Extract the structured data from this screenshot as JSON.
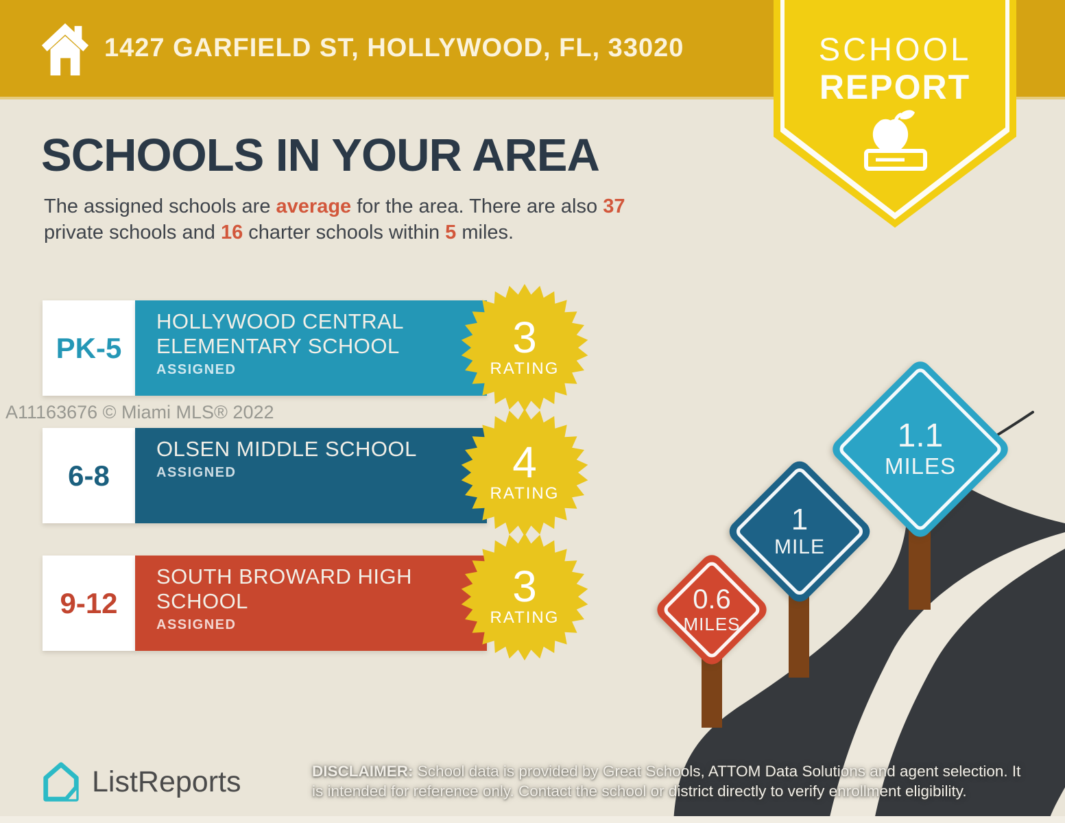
{
  "header": {
    "address": "1427 GARFIELD ST, HOLLYWOOD, FL, 33020"
  },
  "badge": {
    "line1": "SCHOOL",
    "line2": "REPORT"
  },
  "title": "SCHOOLS IN YOUR AREA",
  "intro": {
    "t1": "The assigned schools are ",
    "a1": "average",
    "t2": " for the area. There are also ",
    "a2": "37",
    "t3": "private schools and ",
    "a3": "16",
    "t4": " charter schools within ",
    "a4": "5",
    "t5": " miles."
  },
  "schools": [
    {
      "grades": "PK-5",
      "name_line1": "HOLLYWOOD CENTRAL",
      "name_line2": "ELEMENTARY SCHOOL",
      "status": "ASSIGNED",
      "rating": "3",
      "rating_label": "RATING",
      "bar_color": "#2497B6"
    },
    {
      "grades": "6-8",
      "name_line1": "OLSEN MIDDLE SCHOOL",
      "name_line2": "",
      "status": "ASSIGNED",
      "rating": "4",
      "rating_label": "RATING",
      "bar_color": "#1B607F"
    },
    {
      "grades": "9-12",
      "name_line1": "SOUTH BROWARD HIGH",
      "name_line2": "SCHOOL",
      "status": "ASSIGNED",
      "rating": "3",
      "rating_label": "RATING",
      "bar_color": "#C8472E"
    }
  ],
  "distance_signs": [
    {
      "value": "0.6",
      "unit": "MILES",
      "color": "#D1472F"
    },
    {
      "value": "1",
      "unit": "MILE",
      "color": "#1D6287"
    },
    {
      "value": "1.1",
      "unit": "MILES",
      "color": "#2BA4C6"
    }
  ],
  "watermark": "A11163676 © Miami MLS® 2022",
  "footer": {
    "brand": "ListReports",
    "disclaimer_label": "DISCLAIMER:",
    "disclaimer_text": " School data is provided by Great Schools, ATTOM Data Solutions and agent selection. It is intended for reference only. Contact the school or district directly to verify enrollment eligibility."
  },
  "colors": {
    "header_gold": "#D5A313",
    "badge_yellow": "#F2CE12",
    "starburst_yellow": "#E9C51D",
    "elementary_teal": "#2497B6",
    "middle_blue": "#1B607F",
    "high_red": "#C8472E",
    "title_navy": "#2B3947",
    "accent_orange": "#D2573B",
    "road_dark": "#36393D",
    "background_beige": "#EAE5D8",
    "post_brown": "#7C4318",
    "logo_teal": "#2CBAC6"
  }
}
